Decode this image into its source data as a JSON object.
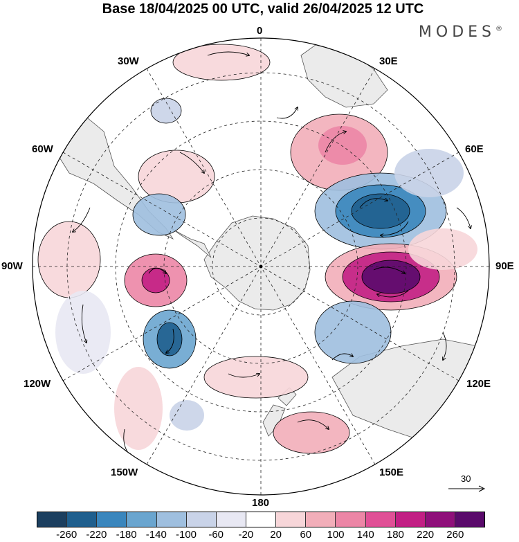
{
  "title": "Base 18/04/2025 00 UTC, valid 26/04/2025 12 UTC",
  "brand": "MODES",
  "brand_mark": "®",
  "longitude_labels": {
    "top": "0",
    "top_left": "30W",
    "top_right": "30E",
    "upper_left": "60W",
    "upper_right": "60E",
    "left": "90W",
    "right": "90E",
    "lower_left": "120W",
    "lower_right": "120E",
    "bottom_left": "150W",
    "bottom_right": "150E",
    "bottom": "180"
  },
  "reference_vector": "30",
  "colorbar": {
    "colors": [
      "#1c3f5f",
      "#1f5f8e",
      "#3a86bd",
      "#6aa5cf",
      "#9fbfdf",
      "#c9d3e8",
      "#e8e8f3",
      "#ffffff",
      "#f7d6d9",
      "#f2aeb9",
      "#ec86a6",
      "#e05096",
      "#c21f84",
      "#8f0f7a",
      "#5a0a6b"
    ],
    "tick_labels": [
      "-260",
      "-220",
      "-180",
      "-140",
      "-100",
      "-60",
      "-20",
      "20",
      "60",
      "100",
      "140",
      "180",
      "220",
      "260"
    ]
  },
  "map_colors": {
    "land": "#ebebeb",
    "coast": "#555555",
    "graticule": "#222222"
  }
}
